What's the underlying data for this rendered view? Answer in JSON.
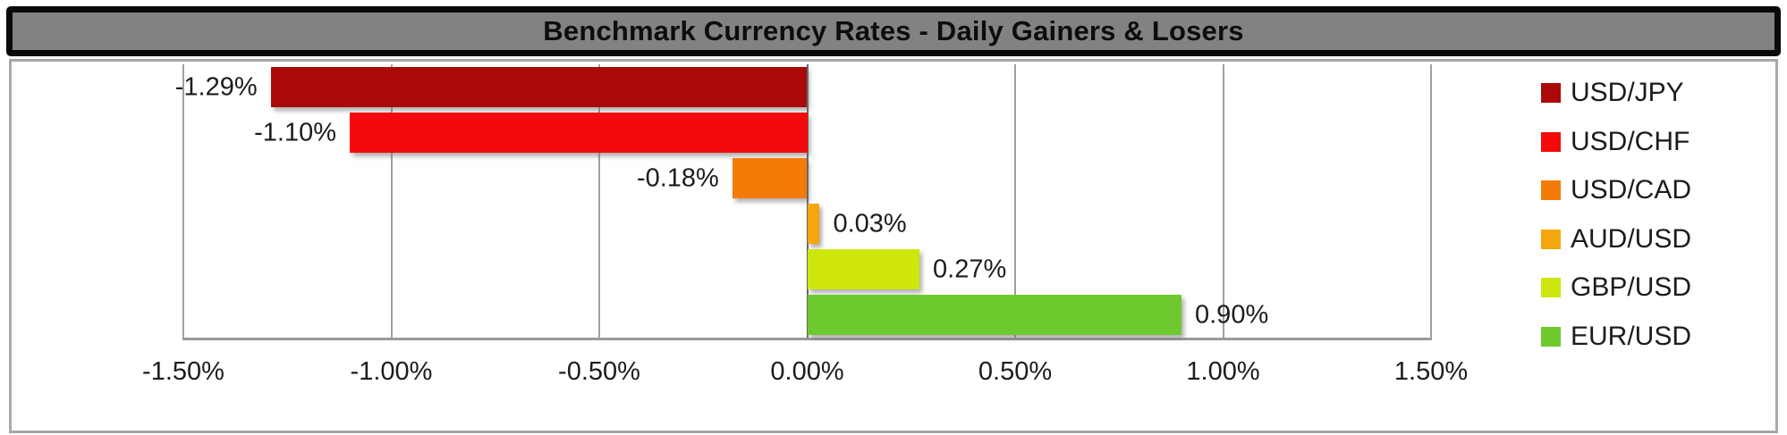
{
  "title_bar": {
    "title": "Benchmark Currency Rates - Daily Gainers & Losers"
  },
  "chart_data": {
    "type": "bar",
    "orientation": "horizontal",
    "title": "Benchmark Currency Rates - Daily Gainers & Losers",
    "series": [
      {
        "name": "USD/JPY",
        "value": -1.29,
        "label": "-1.29%",
        "color": "#AA0909"
      },
      {
        "name": "USD/CHF",
        "value": -1.1,
        "label": "-1.10%",
        "color": "#F40A0A"
      },
      {
        "name": "USD/CAD",
        "value": -0.18,
        "label": "-0.18%",
        "color": "#F57B08"
      },
      {
        "name": "AUD/USD",
        "value": 0.03,
        "label": "0.03%",
        "color": "#F4A60D"
      },
      {
        "name": "GBP/USD",
        "value": 0.27,
        "label": "0.27%",
        "color": "#CFE60C"
      },
      {
        "name": "EUR/USD",
        "value": 0.9,
        "label": "0.90%",
        "color": "#6EC92E"
      }
    ],
    "xlim": [
      -1.5,
      1.5
    ],
    "x_ticks": [
      {
        "value": -1.5,
        "label": "-1.50%"
      },
      {
        "value": -1.0,
        "label": "-1.00%"
      },
      {
        "value": -0.5,
        "label": "-0.50%"
      },
      {
        "value": 0.0,
        "label": "0.00%"
      },
      {
        "value": 0.5,
        "label": "0.50%"
      },
      {
        "value": 1.0,
        "label": "1.00%"
      },
      {
        "value": 1.5,
        "label": "1.50%"
      }
    ],
    "grid": true,
    "legend_position": "right"
  },
  "colors": {
    "title_bar_bg": "#828282",
    "title_bar_border": "#0A0A0A",
    "title_text": "#0D0D0D",
    "chart_border": "#A8A8A8",
    "gridline": "#A0A0A0",
    "zero_line": "#666666",
    "axis_line": "#9A9A9A",
    "label_text": "#1C1C1C",
    "background": "#FFFFFF"
  }
}
